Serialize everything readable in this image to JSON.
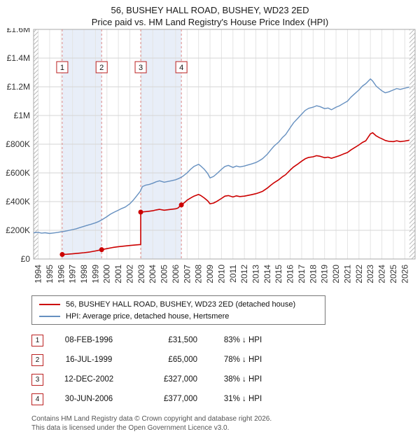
{
  "title": {
    "line1": "56, BUSHEY HALL ROAD, BUSHEY, WD23 2ED",
    "line2": "Price paid vs. HM Land Registry's House Price Index (HPI)"
  },
  "chart_data": {
    "type": "line",
    "x_range": [
      1993.6,
      2026.9
    ],
    "y_range": [
      0,
      1600000
    ],
    "x_ticks": [
      1994,
      1995,
      1996,
      1997,
      1998,
      1999,
      2000,
      2001,
      2002,
      2003,
      2004,
      2005,
      2006,
      2007,
      2008,
      2009,
      2010,
      2011,
      2012,
      2013,
      2014,
      2015,
      2016,
      2017,
      2018,
      2019,
      2020,
      2021,
      2022,
      2023,
      2024,
      2025,
      2026
    ],
    "y_ticks": [
      {
        "v": 0,
        "label": "£0"
      },
      {
        "v": 200000,
        "label": "£200K"
      },
      {
        "v": 400000,
        "label": "£400K"
      },
      {
        "v": 600000,
        "label": "£600K"
      },
      {
        "v": 800000,
        "label": "£800K"
      },
      {
        "v": 1000000,
        "label": "£1M"
      },
      {
        "v": 1200000,
        "label": "£1.2M"
      },
      {
        "v": 1400000,
        "label": "£1.4M"
      },
      {
        "v": 1600000,
        "label": "£1.6M"
      }
    ],
    "bands": [
      {
        "from": 1996.1,
        "to": 1999.54
      },
      {
        "from": 2002.95,
        "to": 2006.5
      }
    ],
    "hatch_left": [
      1993.6,
      1994.0
    ],
    "hatch_right": [
      2026.4,
      2026.9
    ],
    "colors": {
      "price_line": "#cc0000",
      "hpi_line": "#6690c0",
      "band_fill": "#e8eef8",
      "dash_line": "#dd8888",
      "grid_v": "#e4e4e4",
      "grid_h": "#d6d6d6",
      "border": "#aaaaaa",
      "hatch": "#bbbbbb",
      "badge_border": "#bb2222"
    },
    "series": [
      {
        "name": "56, BUSHEY HALL ROAD, BUSHEY, WD23 2ED (detached house)",
        "color": "#cc0000",
        "width": 1.6,
        "points": [
          [
            1996.1,
            31500
          ],
          [
            1996.5,
            33000
          ],
          [
            1997,
            36000
          ],
          [
            1997.5,
            40000
          ],
          [
            1998,
            44000
          ],
          [
            1998.5,
            49000
          ],
          [
            1999,
            56000
          ],
          [
            1999.54,
            65000
          ],
          [
            2000,
            72000
          ],
          [
            2000.5,
            80000
          ],
          [
            2001,
            86000
          ],
          [
            2001.5,
            90000
          ],
          [
            2002,
            94000
          ],
          [
            2002.5,
            98000
          ],
          [
            2002.95,
            101000
          ],
          [
            2002.95,
            327000
          ],
          [
            2003.3,
            330000
          ],
          [
            2003.6,
            332000
          ],
          [
            2004,
            336000
          ],
          [
            2004.3,
            342000
          ],
          [
            2004.6,
            346000
          ],
          [
            2005,
            340000
          ],
          [
            2005.3,
            343000
          ],
          [
            2005.6,
            346000
          ],
          [
            2006,
            350000
          ],
          [
            2006.2,
            355000
          ],
          [
            2006.5,
            377000
          ],
          [
            2006.8,
            395000
          ],
          [
            2007,
            410000
          ],
          [
            2007.3,
            425000
          ],
          [
            2007.6,
            438000
          ],
          [
            2008,
            450000
          ],
          [
            2008.2,
            442000
          ],
          [
            2008.5,
            425000
          ],
          [
            2008.8,
            405000
          ],
          [
            2009,
            385000
          ],
          [
            2009.3,
            390000
          ],
          [
            2009.6,
            402000
          ],
          [
            2010,
            422000
          ],
          [
            2010.3,
            438000
          ],
          [
            2010.6,
            442000
          ],
          [
            2011,
            432000
          ],
          [
            2011.3,
            440000
          ],
          [
            2011.6,
            435000
          ],
          [
            2012,
            438000
          ],
          [
            2012.3,
            443000
          ],
          [
            2012.6,
            448000
          ],
          [
            2013,
            455000
          ],
          [
            2013.3,
            463000
          ],
          [
            2013.6,
            472000
          ],
          [
            2014,
            494000
          ],
          [
            2014.3,
            514000
          ],
          [
            2014.6,
            532000
          ],
          [
            2015,
            552000
          ],
          [
            2015.3,
            572000
          ],
          [
            2015.6,
            588000
          ],
          [
            2016,
            620000
          ],
          [
            2016.3,
            642000
          ],
          [
            2016.6,
            658000
          ],
          [
            2017,
            682000
          ],
          [
            2017.3,
            698000
          ],
          [
            2017.6,
            708000
          ],
          [
            2018,
            712000
          ],
          [
            2018.3,
            720000
          ],
          [
            2018.6,
            716000
          ],
          [
            2019,
            706000
          ],
          [
            2019.3,
            710000
          ],
          [
            2019.6,
            702000
          ],
          [
            2020,
            712000
          ],
          [
            2020.3,
            720000
          ],
          [
            2020.6,
            730000
          ],
          [
            2021,
            742000
          ],
          [
            2021.3,
            760000
          ],
          [
            2021.6,
            775000
          ],
          [
            2022,
            795000
          ],
          [
            2022.3,
            812000
          ],
          [
            2022.6,
            824000
          ],
          [
            2023,
            872000
          ],
          [
            2023.2,
            880000
          ],
          [
            2023.5,
            858000
          ],
          [
            2023.8,
            845000
          ],
          [
            2024,
            838000
          ],
          [
            2024.3,
            826000
          ],
          [
            2024.6,
            820000
          ],
          [
            2025,
            818000
          ],
          [
            2025.3,
            824000
          ],
          [
            2025.6,
            818000
          ],
          [
            2026,
            822000
          ],
          [
            2026.4,
            828000
          ]
        ]
      },
      {
        "name": "HPI: Average price, detached house, Hertsmere",
        "color": "#6690c0",
        "width": 1.4,
        "points": [
          [
            1993.6,
            183000
          ],
          [
            1994,
            186000
          ],
          [
            1994.3,
            180000
          ],
          [
            1994.6,
            183000
          ],
          [
            1995,
            178000
          ],
          [
            1995.4,
            182000
          ],
          [
            1995.7,
            185000
          ],
          [
            1996,
            190000
          ],
          [
            1996.3,
            193000
          ],
          [
            1996.6,
            198000
          ],
          [
            1997,
            205000
          ],
          [
            1997.3,
            210000
          ],
          [
            1997.6,
            218000
          ],
          [
            1998,
            228000
          ],
          [
            1998.3,
            235000
          ],
          [
            1998.6,
            242000
          ],
          [
            1999,
            252000
          ],
          [
            1999.3,
            262000
          ],
          [
            1999.6,
            275000
          ],
          [
            2000,
            295000
          ],
          [
            2000.3,
            312000
          ],
          [
            2000.6,
            325000
          ],
          [
            2001,
            340000
          ],
          [
            2001.3,
            352000
          ],
          [
            2001.6,
            362000
          ],
          [
            2002,
            385000
          ],
          [
            2002.3,
            410000
          ],
          [
            2002.6,
            440000
          ],
          [
            2002.9,
            470000
          ],
          [
            2003.1,
            505000
          ],
          [
            2003.4,
            515000
          ],
          [
            2003.7,
            520000
          ],
          [
            2004,
            528000
          ],
          [
            2004.3,
            538000
          ],
          [
            2004.6,
            545000
          ],
          [
            2005,
            535000
          ],
          [
            2005.3,
            540000
          ],
          [
            2005.6,
            545000
          ],
          [
            2006,
            552000
          ],
          [
            2006.3,
            562000
          ],
          [
            2006.6,
            575000
          ],
          [
            2007,
            600000
          ],
          [
            2007.3,
            625000
          ],
          [
            2007.6,
            645000
          ],
          [
            2008,
            660000
          ],
          [
            2008.2,
            648000
          ],
          [
            2008.5,
            625000
          ],
          [
            2008.8,
            595000
          ],
          [
            2009,
            565000
          ],
          [
            2009.3,
            575000
          ],
          [
            2009.6,
            595000
          ],
          [
            2010,
            625000
          ],
          [
            2010.3,
            645000
          ],
          [
            2010.6,
            652000
          ],
          [
            2011,
            638000
          ],
          [
            2011.3,
            648000
          ],
          [
            2011.6,
            642000
          ],
          [
            2012,
            648000
          ],
          [
            2012.3,
            655000
          ],
          [
            2012.6,
            662000
          ],
          [
            2013,
            672000
          ],
          [
            2013.3,
            685000
          ],
          [
            2013.6,
            700000
          ],
          [
            2014,
            730000
          ],
          [
            2014.3,
            760000
          ],
          [
            2014.6,
            788000
          ],
          [
            2015,
            815000
          ],
          [
            2015.3,
            845000
          ],
          [
            2015.6,
            868000
          ],
          [
            2016,
            915000
          ],
          [
            2016.3,
            950000
          ],
          [
            2016.6,
            975000
          ],
          [
            2017,
            1010000
          ],
          [
            2017.3,
            1035000
          ],
          [
            2017.6,
            1050000
          ],
          [
            2018,
            1058000
          ],
          [
            2018.3,
            1068000
          ],
          [
            2018.6,
            1062000
          ],
          [
            2019,
            1048000
          ],
          [
            2019.3,
            1052000
          ],
          [
            2019.6,
            1040000
          ],
          [
            2020,
            1058000
          ],
          [
            2020.3,
            1068000
          ],
          [
            2020.6,
            1082000
          ],
          [
            2021,
            1100000
          ],
          [
            2021.3,
            1128000
          ],
          [
            2021.6,
            1150000
          ],
          [
            2022,
            1178000
          ],
          [
            2022.3,
            1205000
          ],
          [
            2022.6,
            1222000
          ],
          [
            2023,
            1255000
          ],
          [
            2023.2,
            1240000
          ],
          [
            2023.5,
            1205000
          ],
          [
            2023.8,
            1185000
          ],
          [
            2024,
            1172000
          ],
          [
            2024.3,
            1158000
          ],
          [
            2024.6,
            1165000
          ],
          [
            2025,
            1178000
          ],
          [
            2025.3,
            1188000
          ],
          [
            2025.6,
            1182000
          ],
          [
            2026,
            1190000
          ],
          [
            2026.4,
            1198000
          ]
        ]
      }
    ],
    "markers": [
      {
        "n": "1",
        "x": 1996.1,
        "y": 31500
      },
      {
        "n": "2",
        "x": 1999.54,
        "y": 65000
      },
      {
        "n": "3",
        "x": 2002.95,
        "y": 327000
      },
      {
        "n": "4",
        "x": 2006.5,
        "y": 377000
      }
    ]
  },
  "legend": {
    "items": [
      {
        "label": "56, BUSHEY HALL ROAD, BUSHEY, WD23 2ED (detached house)",
        "color": "#cc0000"
      },
      {
        "label": "HPI: Average price, detached house, Hertsmere",
        "color": "#6690c0"
      }
    ]
  },
  "table": {
    "rows": [
      {
        "n": "1",
        "date": "08-FEB-1996",
        "price": "£31,500",
        "hpi": "83% ↓ HPI"
      },
      {
        "n": "2",
        "date": "16-JUL-1999",
        "price": "£65,000",
        "hpi": "78% ↓ HPI"
      },
      {
        "n": "3",
        "date": "12-DEC-2002",
        "price": "£327,000",
        "hpi": "38% ↓ HPI"
      },
      {
        "n": "4",
        "date": "30-JUN-2006",
        "price": "£377,000",
        "hpi": "31% ↓ HPI"
      }
    ]
  },
  "footer": {
    "line1": "Contains HM Land Registry data © Crown copyright and database right 2026.",
    "line2": "This data is licensed under the Open Government Licence v3.0."
  }
}
